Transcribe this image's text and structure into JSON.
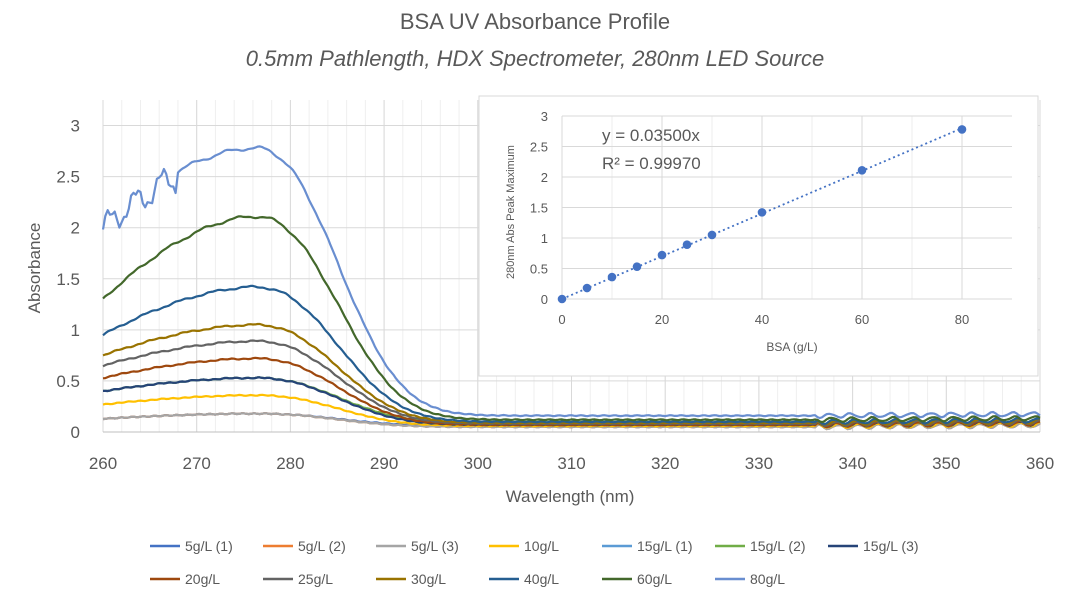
{
  "chart_data": [
    {
      "type": "line",
      "title": "BSA UV Absorbance Profile",
      "subtitle": "0.5mm Pathlength, HDX Spectrometer, 280nm LED Source",
      "xlabel": "Wavelength (nm)",
      "ylabel": "Absorbance",
      "xlim": [
        260,
        360
      ],
      "ylim": [
        0,
        3.25
      ],
      "x_ticks": [
        "260",
        "270",
        "280",
        "290",
        "300",
        "310",
        "320",
        "330",
        "340",
        "350",
        "360"
      ],
      "y_ticks": [
        "0",
        "0.5",
        "1",
        "1.5",
        "2",
        "2.5",
        "3"
      ],
      "grid": true,
      "legend_position": "bottom",
      "series": [
        {
          "name": "5g/L (1)",
          "color": "#4472c4",
          "peak": 0.18,
          "base260": 0.13,
          "tail": 0.06
        },
        {
          "name": "5g/L (2)",
          "color": "#ed7d31",
          "peak": 0.18,
          "base260": 0.13,
          "tail": 0.05
        },
        {
          "name": "5g/L (3)",
          "color": "#a5a5a5",
          "peak": 0.18,
          "base260": 0.13,
          "tail": 0.05
        },
        {
          "name": "10g/L",
          "color": "#ffc000",
          "peak": 0.36,
          "base260": 0.27,
          "tail": 0.06
        },
        {
          "name": "15g/L (1)",
          "color": "#5b9bd5",
          "peak": 0.53,
          "base260": 0.4,
          "tail": 0.08
        },
        {
          "name": "15g/L (2)",
          "color": "#70ad47",
          "peak": 0.53,
          "base260": 0.4,
          "tail": 0.09
        },
        {
          "name": "15g/L (3)",
          "color": "#264478",
          "peak": 0.53,
          "base260": 0.4,
          "tail": 0.07
        },
        {
          "name": "20g/L",
          "color": "#9e480e",
          "peak": 0.72,
          "base260": 0.53,
          "tail": 0.07
        },
        {
          "name": "25g/L",
          "color": "#636363",
          "peak": 0.89,
          "base260": 0.65,
          "tail": 0.08
        },
        {
          "name": "30g/L",
          "color": "#997300",
          "peak": 1.05,
          "base260": 0.75,
          "tail": 0.09
        },
        {
          "name": "40g/L",
          "color": "#255e91",
          "peak": 1.42,
          "base260": 0.95,
          "tail": 0.1
        },
        {
          "name": "60g/L",
          "color": "#43682b",
          "peak": 2.11,
          "base260": 1.3,
          "tail": 0.12
        },
        {
          "name": "80g/L",
          "color": "#698ed0",
          "peak": 2.78,
          "base260": 2.05,
          "tail": 0.16
        }
      ]
    },
    {
      "type": "scatter",
      "xlabel": "BSA (g/L)",
      "ylabel": "280nm Abs Peak Maximum",
      "xlim": [
        0,
        90
      ],
      "ylim": [
        0,
        3
      ],
      "x_ticks": [
        "0",
        "20",
        "40",
        "60",
        "80"
      ],
      "y_ticks": [
        "0",
        "0.5",
        "1",
        "1.5",
        "2",
        "2.5",
        "3"
      ],
      "grid": true,
      "x": [
        0,
        5,
        10,
        15,
        20,
        25,
        30,
        40,
        60,
        80
      ],
      "y": [
        0,
        0.18,
        0.36,
        0.53,
        0.72,
        0.89,
        1.05,
        1.42,
        2.11,
        2.78
      ],
      "trendline": {
        "type": "linear",
        "slope": 0.035,
        "color": "#4472c4"
      },
      "equation": "y = 0.03500x",
      "r_squared": "R² = 0.99970",
      "marker_color": "#4472c4"
    }
  ]
}
